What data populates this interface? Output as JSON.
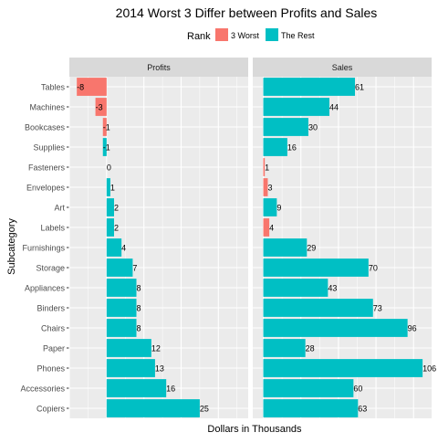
{
  "chart_data": {
    "type": "bar",
    "orientation": "horizontal",
    "title": "2014 Worst 3 Differ between Profits and Sales",
    "xlabel": "Dollars in Thousands",
    "ylabel": "Subcategory",
    "legend": {
      "title": "Rank",
      "position": "top",
      "entries": [
        {
          "label": "3 Worst",
          "color": "#F8766D"
        },
        {
          "label": "The Rest",
          "color": "#00BFC4"
        }
      ]
    },
    "grid": true,
    "categories": [
      "Tables",
      "Machines",
      "Bookcases",
      "Supplies",
      "Fasteners",
      "Envelopes",
      "Art",
      "Labels",
      "Furnishings",
      "Storage",
      "Appliances",
      "Binders",
      "Chairs",
      "Paper",
      "Phones",
      "Accessories",
      "Copiers"
    ],
    "panels": [
      {
        "name": "Profits",
        "xlim": [
          -10,
          38
        ],
        "values": [
          -8,
          -3,
          -1,
          -1,
          0,
          1,
          2,
          2,
          4,
          7,
          8,
          8,
          8,
          12,
          13,
          16,
          25
        ],
        "labels": [
          "-8",
          "-3",
          "-1",
          "-1",
          "0",
          "1",
          "2",
          "2",
          "4",
          "7",
          "8",
          "8",
          "8",
          "12",
          "13",
          "16",
          "25"
        ],
        "rank": [
          "3 Worst",
          "3 Worst",
          "3 Worst",
          "The Rest",
          "The Rest",
          "The Rest",
          "The Rest",
          "The Rest",
          "The Rest",
          "The Rest",
          "The Rest",
          "The Rest",
          "The Rest",
          "The Rest",
          "The Rest",
          "The Rest",
          "The Rest"
        ]
      },
      {
        "name": "Sales",
        "xlim": [
          -7,
          112
        ],
        "values": [
          61,
          44,
          30,
          16,
          1,
          3,
          9,
          4,
          29,
          70,
          43,
          73,
          96,
          28,
          106,
          60,
          63
        ],
        "labels": [
          "61",
          "44",
          "30",
          "16",
          "1",
          "3",
          "9",
          "4",
          "29",
          "70",
          "43",
          "73",
          "96",
          "28",
          "106",
          "60",
          "63"
        ],
        "rank": [
          "The Rest",
          "The Rest",
          "The Rest",
          "The Rest",
          "3 Worst",
          "3 Worst",
          "The Rest",
          "3 Worst",
          "The Rest",
          "The Rest",
          "The Rest",
          "The Rest",
          "The Rest",
          "The Rest",
          "The Rest",
          "The Rest",
          "The Rest"
        ]
      }
    ]
  }
}
